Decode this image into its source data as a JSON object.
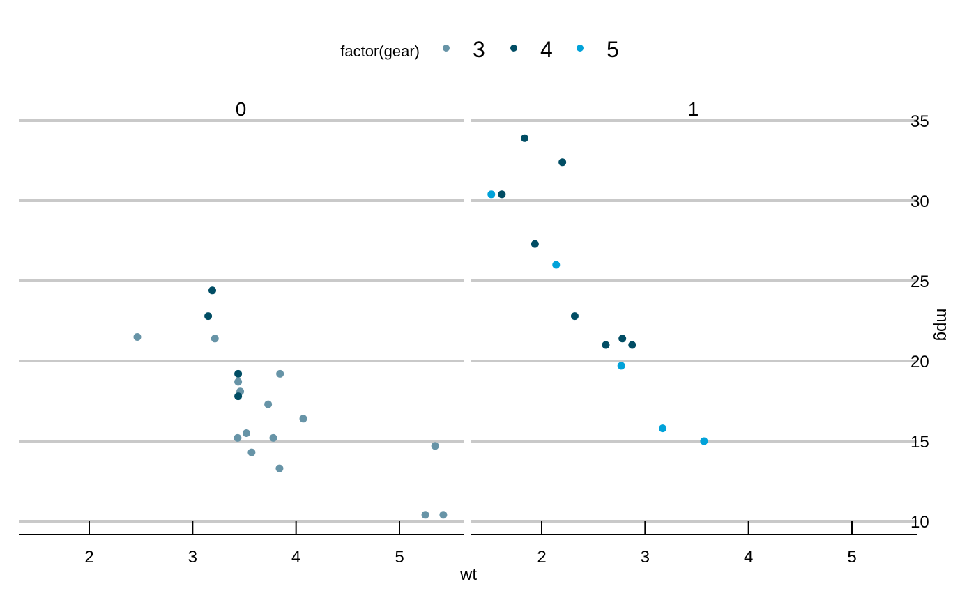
{
  "chart_data": {
    "type": "scatter",
    "facet_variable": "",
    "facets": [
      "0",
      "1"
    ],
    "xlabel": "wt",
    "ylabel": "mpg",
    "xlim": [
      1.33,
      5.62
    ],
    "ylim": [
      9.2,
      35.0
    ],
    "x_ticks": [
      2,
      3,
      4,
      5
    ],
    "y_ticks": [
      10,
      15,
      20,
      25,
      30,
      35
    ],
    "grid": "horizontal major",
    "y_axis_position": "right",
    "legend": {
      "title": "factor(gear)",
      "position": "top",
      "entries": [
        {
          "label": "3",
          "color": "#6794a7"
        },
        {
          "label": "4",
          "color": "#014d64"
        },
        {
          "label": "5",
          "color": "#01a2d9"
        }
      ]
    },
    "points": [
      {
        "facet": "0",
        "gear": "3",
        "x": 3.215,
        "y": 21.4
      },
      {
        "facet": "0",
        "gear": "3",
        "x": 3.44,
        "y": 18.7
      },
      {
        "facet": "0",
        "gear": "3",
        "x": 3.46,
        "y": 18.1
      },
      {
        "facet": "0",
        "gear": "3",
        "x": 3.57,
        "y": 14.3
      },
      {
        "facet": "0",
        "gear": "3",
        "x": 4.07,
        "y": 16.4
      },
      {
        "facet": "0",
        "gear": "3",
        "x": 3.73,
        "y": 17.3
      },
      {
        "facet": "0",
        "gear": "3",
        "x": 3.78,
        "y": 15.2
      },
      {
        "facet": "0",
        "gear": "3",
        "x": 5.25,
        "y": 10.4
      },
      {
        "facet": "0",
        "gear": "3",
        "x": 5.424,
        "y": 10.4
      },
      {
        "facet": "0",
        "gear": "3",
        "x": 5.345,
        "y": 14.7
      },
      {
        "facet": "0",
        "gear": "3",
        "x": 2.465,
        "y": 21.5
      },
      {
        "facet": "0",
        "gear": "3",
        "x": 3.52,
        "y": 15.5
      },
      {
        "facet": "0",
        "gear": "3",
        "x": 3.435,
        "y": 15.2
      },
      {
        "facet": "0",
        "gear": "3",
        "x": 3.84,
        "y": 13.3
      },
      {
        "facet": "0",
        "gear": "3",
        "x": 3.845,
        "y": 19.2
      },
      {
        "facet": "0",
        "gear": "4",
        "x": 3.19,
        "y": 24.4
      },
      {
        "facet": "0",
        "gear": "4",
        "x": 3.15,
        "y": 22.8
      },
      {
        "facet": "0",
        "gear": "4",
        "x": 3.44,
        "y": 19.2
      },
      {
        "facet": "0",
        "gear": "4",
        "x": 3.44,
        "y": 17.8
      },
      {
        "facet": "1",
        "gear": "4",
        "x": 2.62,
        "y": 21.0
      },
      {
        "facet": "1",
        "gear": "4",
        "x": 2.875,
        "y": 21.0
      },
      {
        "facet": "1",
        "gear": "4",
        "x": 2.32,
        "y": 22.8
      },
      {
        "facet": "1",
        "gear": "4",
        "x": 2.2,
        "y": 32.4
      },
      {
        "facet": "1",
        "gear": "4",
        "x": 1.615,
        "y": 30.4
      },
      {
        "facet": "1",
        "gear": "4",
        "x": 1.835,
        "y": 33.9
      },
      {
        "facet": "1",
        "gear": "4",
        "x": 1.935,
        "y": 27.3
      },
      {
        "facet": "1",
        "gear": "4",
        "x": 2.78,
        "y": 21.4
      },
      {
        "facet": "1",
        "gear": "5",
        "x": 2.14,
        "y": 26.0
      },
      {
        "facet": "1",
        "gear": "5",
        "x": 1.513,
        "y": 30.4
      },
      {
        "facet": "1",
        "gear": "5",
        "x": 3.17,
        "y": 15.8
      },
      {
        "facet": "1",
        "gear": "5",
        "x": 2.77,
        "y": 19.7
      },
      {
        "facet": "1",
        "gear": "5",
        "x": 3.57,
        "y": 15.0
      }
    ]
  }
}
